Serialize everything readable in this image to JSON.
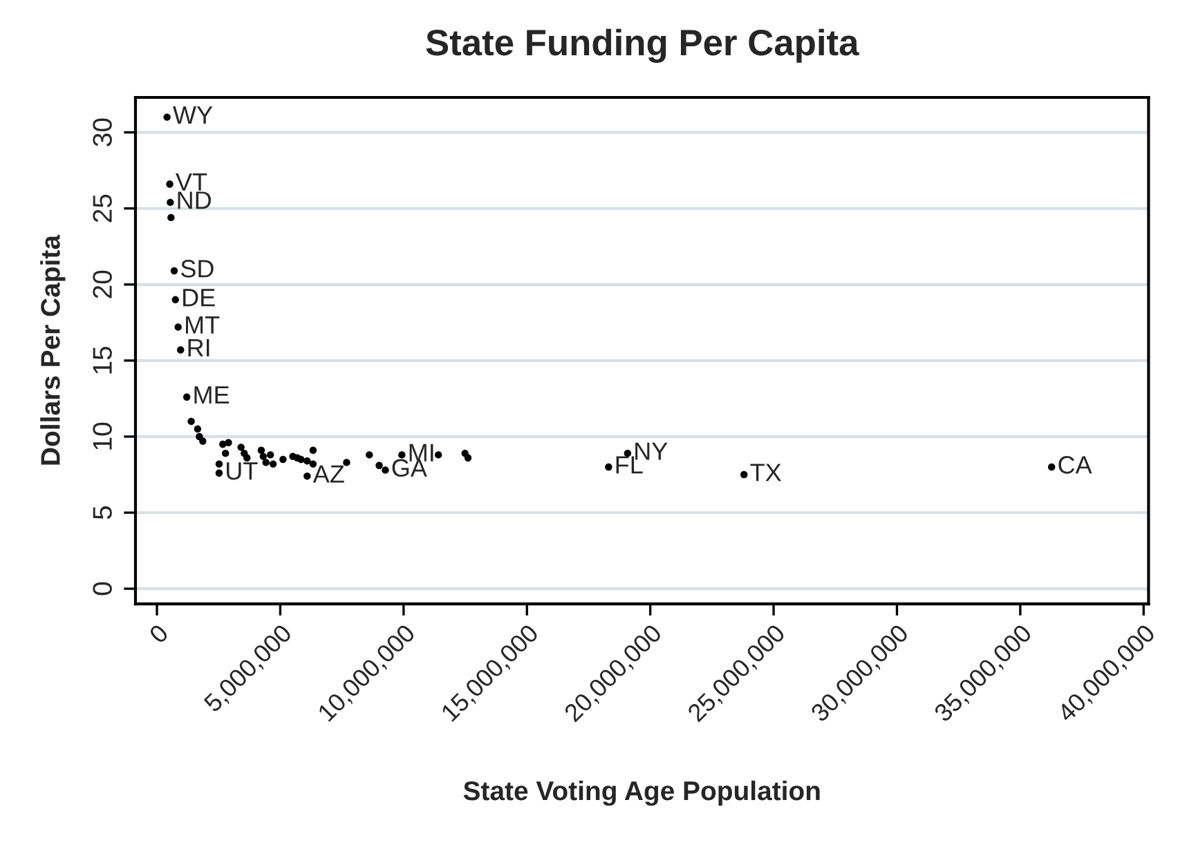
{
  "chart_data": {
    "type": "scatter",
    "title": "State Funding Per Capita",
    "xlabel": "State Voting Age Population",
    "ylabel": "Dollars Per Capita",
    "x": [
      410000,
      520000,
      540000,
      570000,
      700000,
      750000,
      860000,
      960000,
      1210000,
      1390000,
      1650000,
      1720000,
      1860000,
      2670000,
      2900000,
      2780000,
      2520000,
      2520000,
      3410000,
      3540000,
      3650000,
      4230000,
      4310000,
      4420000,
      4600000,
      4710000,
      5110000,
      5510000,
      5690000,
      5840000,
      6090000,
      6330000,
      6330000,
      6090000,
      7690000,
      8610000,
      9010000,
      9260000,
      9930000,
      11410000,
      12490000,
      12610000,
      18310000,
      19080000,
      23800000,
      36270000
    ],
    "series": [
      {
        "color": "#000000",
        "values": [
          31.0,
          26.6,
          25.4,
          24.4,
          20.9,
          19.0,
          17.2,
          15.7,
          12.6,
          11.0,
          10.5,
          10.0,
          9.7,
          9.5,
          9.6,
          8.9,
          8.2,
          7.6,
          9.3,
          8.9,
          8.6,
          9.1,
          8.7,
          8.3,
          8.8,
          8.2,
          8.5,
          8.7,
          8.6,
          8.5,
          8.4,
          9.1,
          8.2,
          7.4,
          8.3,
          8.8,
          8.1,
          7.8,
          8.8,
          8.8,
          8.9,
          8.6,
          8.0,
          8.9,
          7.5,
          8.0
        ]
      }
    ],
    "marker": "circle",
    "grid": "y",
    "xlim": [
      -870000,
      40200000
    ],
    "ylim": [
      -1.0,
      32.3
    ],
    "xticks": [
      {
        "value": 0,
        "label": "0"
      },
      {
        "value": 5000000,
        "label": "5,000,000"
      },
      {
        "value": 10000000,
        "label": "10,000,000"
      },
      {
        "value": 15000000,
        "label": "15,000,000"
      },
      {
        "value": 20000000,
        "label": "20,000,000"
      },
      {
        "value": 25000000,
        "label": "25,000,000"
      },
      {
        "value": 30000000,
        "label": "30,000,000"
      },
      {
        "value": 35000000,
        "label": "35,000,000"
      },
      {
        "value": 40000000,
        "label": "40,000,000"
      }
    ],
    "yticks": [
      0,
      5,
      10,
      15,
      20,
      25,
      30
    ],
    "annotations": [
      {
        "text": "WY",
        "x": 410000,
        "y": 31.0
      },
      {
        "text": "VT",
        "x": 520000,
        "y": 26.6
      },
      {
        "text": "ND",
        "x": 540000,
        "y": 25.4
      },
      {
        "text": "SD",
        "x": 700000,
        "y": 20.9
      },
      {
        "text": "DE",
        "x": 750000,
        "y": 19.0
      },
      {
        "text": "MT",
        "x": 860000,
        "y": 17.2
      },
      {
        "text": "RI",
        "x": 960000,
        "y": 15.7
      },
      {
        "text": "ME",
        "x": 1210000,
        "y": 12.6
      },
      {
        "text": "UT",
        "x": 2520000,
        "y": 7.6
      },
      {
        "text": "AZ",
        "x": 6090000,
        "y": 7.4
      },
      {
        "text": "GA",
        "x": 9260000,
        "y": 7.8
      },
      {
        "text": "MI",
        "x": 9930000,
        "y": 8.8
      },
      {
        "text": "FL",
        "x": 18310000,
        "y": 8.0
      },
      {
        "text": "NY",
        "x": 19080000,
        "y": 8.9
      },
      {
        "text": "TX",
        "x": 23800000,
        "y": 7.5
      },
      {
        "text": "CA",
        "x": 36270000,
        "y": 8.0
      }
    ]
  }
}
